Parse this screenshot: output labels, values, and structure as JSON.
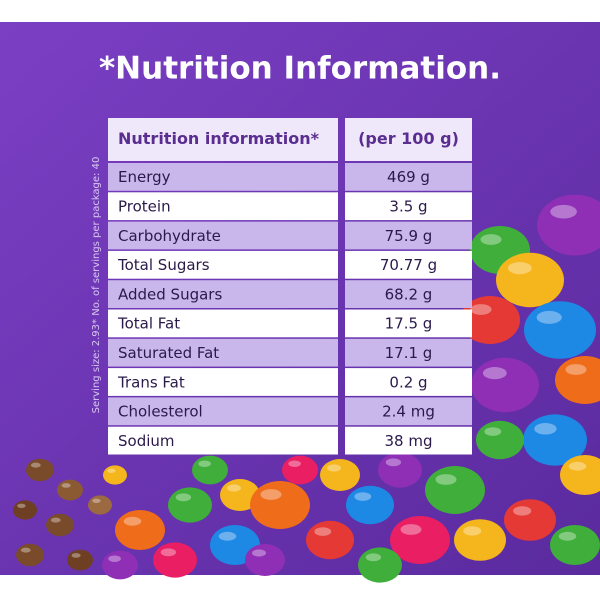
{
  "title": "*Nutrition Information.",
  "side_note": "Serving size: 2.93* No. of servings per package: 40",
  "table": {
    "header": [
      "Nutrition information*",
      "(per 100 g)"
    ],
    "rows": [
      [
        "Energy",
        "469 g"
      ],
      [
        "Protein",
        "3.5 g"
      ],
      [
        "Carbohydrate",
        "75.9 g"
      ],
      [
        "Total Sugars",
        "70.77 g"
      ],
      [
        "Added Sugars",
        "68.2 g"
      ],
      [
        "Total Fat",
        "17.5 g"
      ],
      [
        "Saturated Fat",
        "17.1 g"
      ],
      [
        "Trans Fat",
        "0.2 g"
      ],
      [
        "Cholesterol",
        "2.4 mg"
      ],
      [
        "Sodium",
        "38 mg"
      ]
    ]
  }
}
